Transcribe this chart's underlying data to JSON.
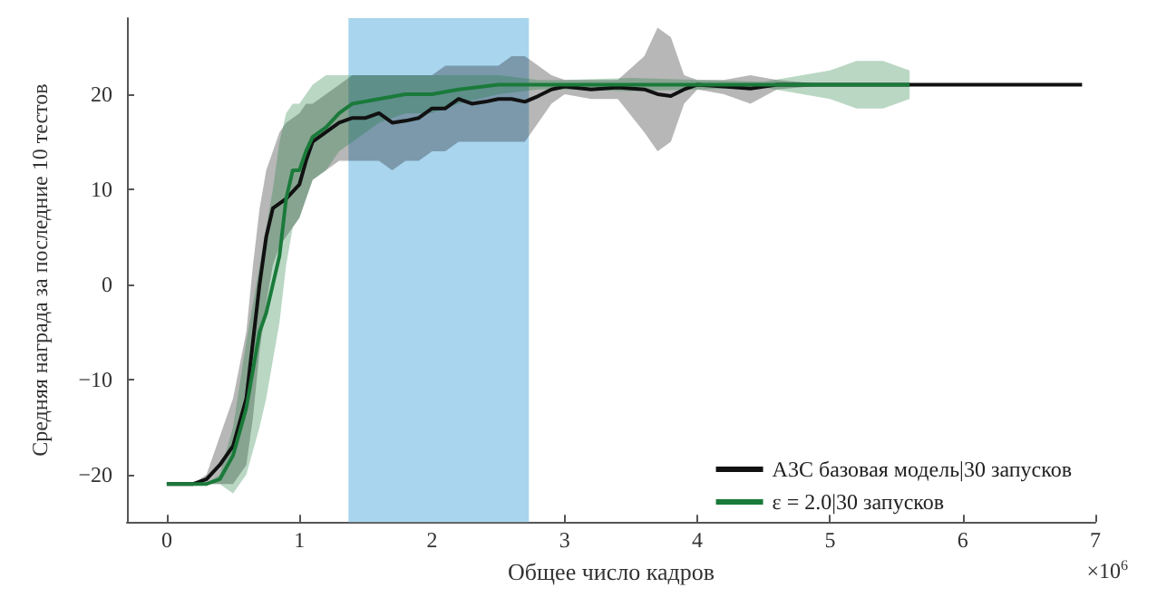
{
  "chart_data": {
    "type": "line",
    "xlabel": "Общее число кадров",
    "ylabel": "Средняя награда за последние 10 тестов",
    "annotations": [
      "×10$^{6}$"
    ],
    "xlim": [
      -0.3,
      7
    ],
    "xticks": [
      0,
      1,
      2,
      3,
      4,
      5,
      6,
      7
    ],
    "ylim": [
      -25,
      28
    ],
    "yticks": [
      -20,
      -10,
      0,
      10,
      20
    ],
    "grid": false,
    "legend": "bottom right",
    "line_style": "solid",
    "marker": "none",
    "bands": [
      {
        "axis": "x",
        "from": 1.37,
        "to": 2.73,
        "color": "#a9d5ee"
      }
    ],
    "series": [
      {
        "name": "A3C базовая модель|30 запусков",
        "color": "#111111",
        "x": [
          0,
          0.2,
          0.3,
          0.4,
          0.5,
          0.6,
          0.65,
          0.7,
          0.75,
          0.8,
          0.85,
          0.9,
          1.0,
          1.05,
          1.1,
          1.2,
          1.3,
          1.4,
          1.5,
          1.6,
          1.7,
          1.8,
          1.9,
          2.0,
          2.1,
          2.2,
          2.3,
          2.4,
          2.5,
          2.6,
          2.7,
          2.8,
          2.9,
          3.0,
          3.2,
          3.4,
          3.6,
          3.7,
          3.8,
          3.9,
          4.0,
          4.2,
          4.4,
          4.6,
          5.0,
          5.5,
          6.0,
          6.5,
          6.9
        ],
        "values": [
          -21,
          -21,
          -20.5,
          -19,
          -17,
          -12,
          -6,
          0,
          5,
          8,
          8.5,
          9,
          10.5,
          13,
          15,
          16,
          17,
          17.5,
          17.5,
          18,
          17,
          17.2,
          17.5,
          18.5,
          18.5,
          19.5,
          19,
          19.2,
          19.5,
          19.5,
          19.2,
          19.8,
          20.5,
          20.8,
          20.5,
          20.7,
          20.5,
          20,
          19.8,
          20.5,
          21,
          20.8,
          20.6,
          21,
          21,
          21,
          21,
          21,
          21
        ],
        "lower": [
          -21,
          -21,
          -21,
          -21,
          -21,
          -19,
          -14,
          -7,
          -2,
          2,
          4,
          5,
          7,
          9,
          11,
          12,
          13,
          13,
          13,
          13,
          12,
          13,
          13,
          14,
          14,
          15,
          15,
          15,
          15,
          15,
          15,
          17,
          19,
          20,
          19.5,
          19.5,
          16,
          14,
          15,
          19,
          20.5,
          20,
          19,
          20.5,
          21,
          21,
          21,
          21,
          21
        ],
        "upper": [
          -21,
          -21,
          -20,
          -16,
          -12,
          -5,
          2,
          8,
          12,
          14,
          16,
          17,
          18,
          19,
          19,
          20,
          21,
          22,
          22,
          22,
          22,
          22,
          22,
          22,
          23,
          23,
          23,
          23,
          23,
          24,
          24,
          23,
          22,
          21.5,
          21.5,
          21.5,
          24,
          27,
          26,
          22,
          21.5,
          21.5,
          22,
          21.5,
          21,
          21,
          21,
          21,
          21
        ]
      },
      {
        "name": "ε = 2.0|30 запусков",
        "color": "#1a7a3a",
        "x": [
          0,
          0.3,
          0.4,
          0.5,
          0.6,
          0.7,
          0.75,
          0.8,
          0.85,
          0.9,
          0.95,
          1.0,
          1.05,
          1.1,
          1.2,
          1.3,
          1.4,
          1.6,
          1.8,
          2.0,
          2.2,
          2.5,
          2.8,
          3.0,
          3.5,
          4.0,
          4.5,
          5.0,
          5.2,
          5.4,
          5.6
        ],
        "values": [
          -21,
          -21,
          -20.5,
          -18,
          -13,
          -5,
          -3,
          0,
          3,
          9,
          12,
          12,
          14,
          15.5,
          16.5,
          18,
          19,
          19.5,
          20,
          20,
          20.5,
          21,
          21,
          21,
          21,
          21,
          21,
          21,
          21,
          21,
          21
        ],
        "lower": [
          -21,
          -21,
          -21,
          -22,
          -20,
          -15,
          -12,
          -8,
          -4,
          2,
          6,
          7,
          9,
          11,
          12,
          14,
          15,
          17,
          18,
          18,
          19,
          20,
          20.5,
          20.5,
          20.3,
          20.5,
          20.7,
          19.5,
          18.5,
          18.5,
          19.5
        ],
        "upper": [
          -21,
          -21,
          -20,
          -15,
          -6,
          2,
          6,
          10,
          15,
          18,
          19,
          19,
          20,
          21,
          22,
          22,
          22,
          22,
          22,
          22,
          22,
          22,
          21.5,
          21.5,
          21.7,
          21.5,
          21.3,
          22.5,
          23.5,
          23.5,
          22.5
        ]
      }
    ]
  }
}
